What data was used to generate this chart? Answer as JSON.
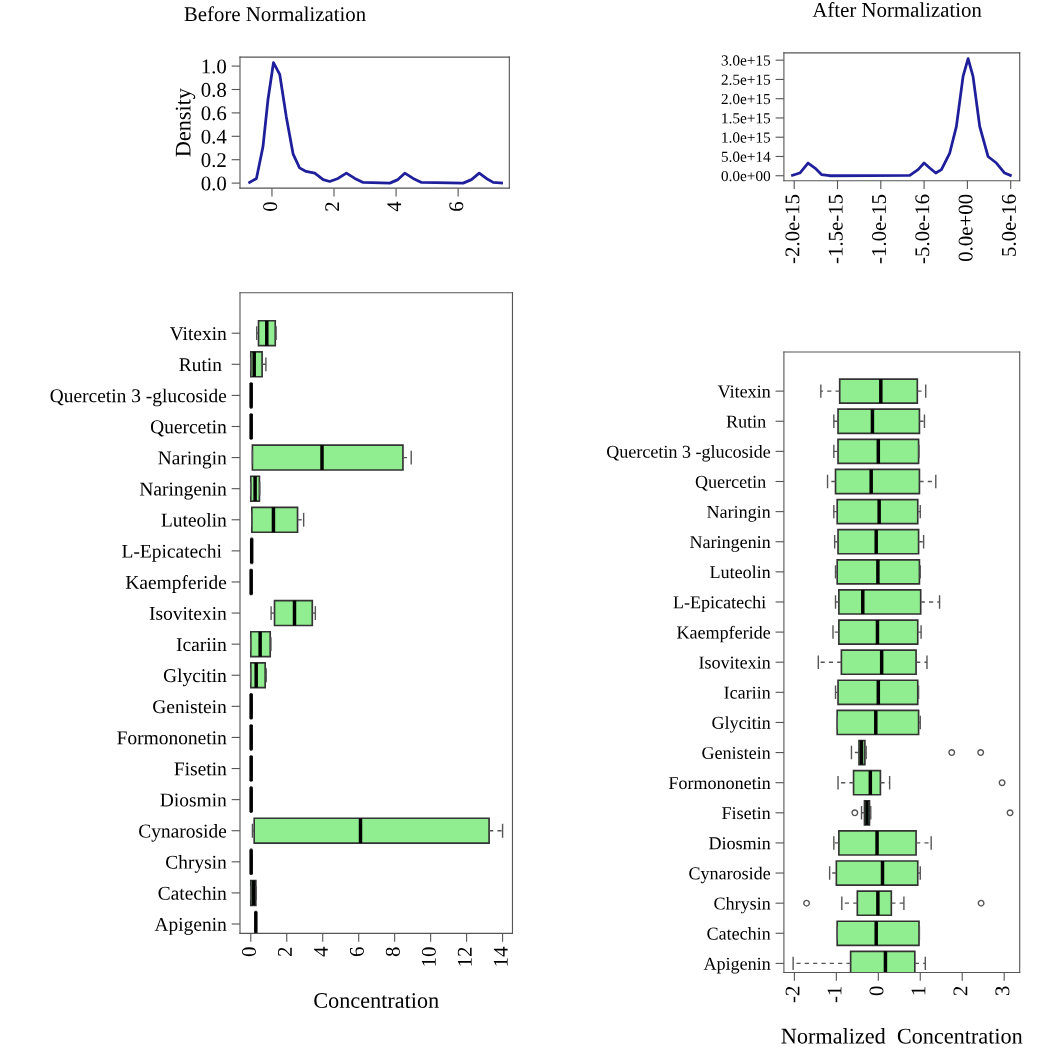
{
  "chart_data": [
    {
      "type": "line",
      "title": "Before Normalization",
      "ylabel": "Density",
      "xlim": [
        -1.03,
        7.65
      ],
      "ylim": [
        -0.043,
        1.077
      ],
      "xticks": [
        0,
        2,
        4,
        6
      ],
      "yticks": [
        {
          "value": 0,
          "label": "0.0"
        },
        {
          "value": 0.2,
          "label": "0.2"
        },
        {
          "value": 0.4,
          "label": "0.4"
        },
        {
          "value": 0.6,
          "label": "0.6"
        },
        {
          "value": 0.8,
          "label": "0.8"
        },
        {
          "value": 1.0,
          "label": "1.0"
        }
      ],
      "series": [
        {
          "color": "#1f1f9c",
          "x": [
            -0.72,
            -0.5,
            -0.29,
            -0.13,
            0.05,
            0.25,
            0.46,
            0.68,
            0.89,
            1.1,
            1.38,
            1.65,
            1.86,
            2.13,
            2.4,
            2.67,
            2.94,
            3.8,
            4.06,
            4.28,
            4.55,
            4.82,
            6.16,
            6.43,
            6.68,
            6.91,
            7.13,
            7.4
          ],
          "values": [
            0.006,
            0.04,
            0.31,
            0.71,
            1.03,
            0.93,
            0.57,
            0.25,
            0.13,
            0.1,
            0.085,
            0.03,
            0.014,
            0.04,
            0.085,
            0.04,
            0.006,
            0,
            0.03,
            0.085,
            0.04,
            0.006,
            0,
            0.03,
            0.085,
            0.04,
            0.006,
            0
          ]
        }
      ]
    },
    {
      "type": "line",
      "title": "After Normalization",
      "xlim": [
        -2.119e-15,
        6.04e-16
      ],
      "ylim": [
        -130000000000000.0,
        3190000000000000.0
      ],
      "xticks": [
        {
          "value": -2e-15,
          "label": "-2.0e-15"
        },
        {
          "value": -1.5e-15,
          "label": "-1.5e-15"
        },
        {
          "value": -1e-15,
          "label": "-1.0e-15"
        },
        {
          "value": -5e-16,
          "label": "-5.0e-16"
        },
        {
          "value": 0,
          "label": "0.0e+00"
        },
        {
          "value": 5e-16,
          "label": "5.0e-16"
        }
      ],
      "yticks": [
        {
          "value": 0,
          "label": "0.0e+00"
        },
        {
          "value": 500000000000000.0,
          "label": "5.0e+14"
        },
        {
          "value": 1000000000000000.0,
          "label": "1.0e+15"
        },
        {
          "value": 1500000000000000.0,
          "label": "1.5e+15"
        },
        {
          "value": 2000000000000000.0,
          "label": "2.0e+15"
        },
        {
          "value": 2500000000000000.0,
          "label": "2.5e+15"
        },
        {
          "value": 3000000000000000.0,
          "label": "3.0e+15"
        }
      ],
      "series": [
        {
          "color": "#1f1f9c",
          "x": [
            -2.02e-15,
            -1.935e-15,
            -1.84e-15,
            -1.76e-15,
            -1.685e-15,
            -1.59e-15,
            -6.65e-16,
            -5.7e-16,
            -5e-16,
            -4.35e-16,
            -3.65e-16,
            -3e-16,
            -2.04e-16,
            -1.27e-16,
            -5e-17,
            8e-18,
            6.5e-17,
            1.42e-16,
            2.38e-16,
            3.35e-16,
            4.3e-16,
            4.96e-16
          ],
          "values": [
            10000000000000.0,
            70000000000000.0,
            330000000000000.0,
            200000000000000.0,
            30000000000000.0,
            0,
            10000000000000.0,
            160000000000000.0,
            330000000000000.0,
            200000000000000.0,
            70000000000000.0,
            160000000000000.0,
            590000000000000.0,
            1280000000000000.0,
            2580000000000000.0,
            3040000000000000.0,
            2580000000000000.0,
            1280000000000000.0,
            500000000000000.0,
            330000000000000.0,
            70000000000000.0,
            10000000000000.0
          ]
        }
      ]
    },
    {
      "type": "box",
      "orientation": "horizontal",
      "xlabel": "Concentration",
      "color": "#90ee90",
      "xlim": [
        -0.6,
        14.55
      ],
      "xticks": [
        0,
        2,
        4,
        6,
        8,
        10,
        12,
        14
      ],
      "categories": [
        "Vitexin",
        "Rutin ",
        "Quercetin 3 -glucoside",
        "Quercetin",
        "Naringin",
        "Naringenin",
        "Luteolin",
        "L-Epicatechi ",
        "Kaempferide",
        "Isovitexin",
        "Icariin",
        "Glycitin",
        "Genistein",
        "Formononetin",
        "Fisetin",
        "Diosmin",
        "Cynaroside",
        "Chrysin",
        "Catechin",
        "Apigenin"
      ],
      "boxes": [
        {
          "low": 0.33,
          "q1": 0.43,
          "median": 0.89,
          "q3": 1.36,
          "high": 1.41
        },
        {
          "low": 0.0,
          "q1": 0.0,
          "median": 0.19,
          "q3": 0.63,
          "high": 0.84
        },
        {
          "low": 0.0,
          "q1": 0.0,
          "median": 0.02,
          "q3": 0.04,
          "high": 0.06
        },
        {
          "low": 0.0,
          "q1": 0.0,
          "median": 0.02,
          "q3": 0.04,
          "high": 0.06
        },
        {
          "low": 0.09,
          "q1": 0.09,
          "median": 3.96,
          "q3": 8.46,
          "high": 8.92
        },
        {
          "low": 0.0,
          "q1": 0.0,
          "median": 0.24,
          "q3": 0.48,
          "high": 0.5
        },
        {
          "low": 0.06,
          "q1": 0.06,
          "median": 1.26,
          "q3": 2.6,
          "high": 2.94
        },
        {
          "low": 0.03,
          "q1": 0.03,
          "median": 0.05,
          "q3": 0.07,
          "high": 0.08
        },
        {
          "low": 0.0,
          "q1": 0.0,
          "median": 0.02,
          "q3": 0.04,
          "high": 0.05
        },
        {
          "low": 1.13,
          "q1": 1.32,
          "median": 2.43,
          "q3": 3.42,
          "high": 3.59
        },
        {
          "low": 0.0,
          "q1": 0.0,
          "median": 0.52,
          "q3": 1.08,
          "high": 1.12
        },
        {
          "low": 0.0,
          "q1": 0.0,
          "median": 0.3,
          "q3": 0.8,
          "high": 0.86
        },
        {
          "low": 0.0,
          "q1": 0.0,
          "median": 0.02,
          "q3": 0.04,
          "high": 0.06
        },
        {
          "low": 0.0,
          "q1": 0.0,
          "median": 0.02,
          "q3": 0.04,
          "high": 0.06
        },
        {
          "low": 0.0,
          "q1": 0.0,
          "median": 0.02,
          "q3": 0.04,
          "high": 0.06
        },
        {
          "low": 0.0,
          "q1": 0.0,
          "median": 0.02,
          "q3": 0.04,
          "high": 0.06
        },
        {
          "low": 0.09,
          "q1": 0.19,
          "median": 6.1,
          "q3": 13.25,
          "high": 14.0
        },
        {
          "low": 0.0,
          "q1": 0.0,
          "median": 0.02,
          "q3": 0.04,
          "high": 0.06
        },
        {
          "low": 0.0,
          "q1": 0.0,
          "median": 0.15,
          "q3": 0.28,
          "high": 0.3
        },
        {
          "low": 0.26,
          "q1": 0.27,
          "median": 0.28,
          "q3": 0.29,
          "high": 0.3
        }
      ]
    },
    {
      "type": "box",
      "orientation": "horizontal",
      "xlabel": "Normalized  Concentration",
      "color": "#90ee90",
      "xlim": [
        -2.25,
        3.37
      ],
      "xticks": [
        -2,
        -1,
        0,
        1,
        2,
        3
      ],
      "categories": [
        "Vitexin",
        "Rutin ",
        "Quercetin 3 -glucoside",
        "Quercetin ",
        "Naringin",
        "Naringenin",
        "Luteolin",
        "L-Epicatechi ",
        "Kaempferide",
        "Isovitexin",
        "Icariin",
        "Glycitin",
        "Genistein",
        "Formononetin",
        "Fisetin",
        "Diosmin",
        "Cynaroside",
        "Chrysin",
        "Catechin",
        "Apigenin"
      ],
      "boxes": [
        {
          "low": -1.37,
          "q1": -0.92,
          "median": 0.06,
          "q3": 0.93,
          "high": 1.13
        },
        {
          "low": -1.06,
          "q1": -0.96,
          "median": -0.14,
          "q3": 0.98,
          "high": 1.1
        },
        {
          "low": -1.06,
          "q1": -0.96,
          "median": 0.0,
          "q3": 0.96,
          "high": 0.97
        },
        {
          "low": -1.21,
          "q1": -1.02,
          "median": -0.17,
          "q3": 0.98,
          "high": 1.37
        },
        {
          "low": -1.06,
          "q1": -0.98,
          "median": 0.02,
          "q3": 0.94,
          "high": 1.0
        },
        {
          "low": -1.04,
          "q1": -0.96,
          "median": -0.05,
          "q3": 0.96,
          "high": 1.08
        },
        {
          "low": -1.02,
          "q1": -0.98,
          "median": -0.01,
          "q3": 0.98,
          "high": 1.0
        },
        {
          "low": -1.02,
          "q1": -0.94,
          "median": -0.37,
          "q3": 1.01,
          "high": 1.46
        },
        {
          "low": -1.08,
          "q1": -0.94,
          "median": -0.02,
          "q3": 0.94,
          "high": 1.02
        },
        {
          "low": -1.43,
          "q1": -0.88,
          "median": 0.08,
          "q3": 0.9,
          "high": 1.16
        },
        {
          "low": -1.02,
          "q1": -0.96,
          "median": 0.0,
          "q3": 0.94,
          "high": 0.96
        },
        {
          "low": -0.98,
          "q1": -0.98,
          "median": -0.06,
          "q3": 0.96,
          "high": 1.0
        },
        {
          "low": -0.64,
          "q1": -0.46,
          "median": -0.4,
          "q3": -0.32,
          "high": -0.29,
          "outliers": [
            1.75,
            2.44
          ]
        },
        {
          "low": -0.96,
          "q1": -0.59,
          "median": -0.19,
          "q3": 0.05,
          "high": 0.27,
          "outliers": [
            2.95
          ]
        },
        {
          "low": -0.4,
          "q1": -0.33,
          "median": -0.27,
          "q3": -0.21,
          "high": -0.18,
          "outliers": [
            -0.56,
            3.14
          ]
        },
        {
          "low": -1.06,
          "q1": -0.94,
          "median": -0.03,
          "q3": 0.9,
          "high": 1.26
        },
        {
          "low": -1.16,
          "q1": -1.0,
          "median": 0.1,
          "q3": 0.94,
          "high": 1.0
        },
        {
          "low": -0.87,
          "q1": -0.5,
          "median": -0.01,
          "q3": 0.31,
          "high": 0.61,
          "outliers": [
            -1.71,
            2.45
          ]
        },
        {
          "low": -0.98,
          "q1": -0.98,
          "median": -0.05,
          "q3": 0.97,
          "high": 0.98
        },
        {
          "low": -2.03,
          "q1": -0.66,
          "median": 0.17,
          "q3": 0.87,
          "high": 1.12
        }
      ]
    }
  ]
}
